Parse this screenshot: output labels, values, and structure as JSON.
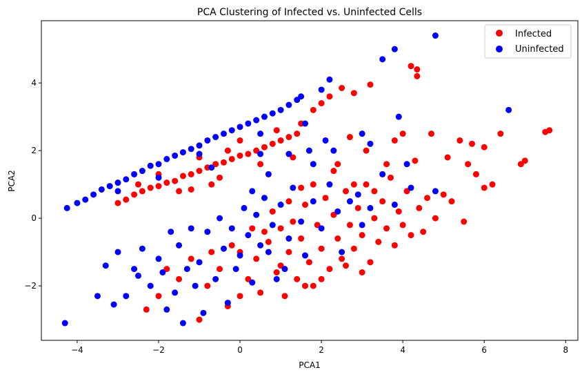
{
  "chart_data": {
    "type": "scatter",
    "title": "PCA Clustering of Infected vs. Uninfected Cells",
    "xlabel": "PCA1",
    "ylabel": "PCA2",
    "xlim": [
      -4.88,
      8.3
    ],
    "ylim": [
      -3.61,
      5.84
    ],
    "xticks": [
      -4,
      -2,
      0,
      2,
      4,
      6,
      8
    ],
    "yticks": [
      -2,
      0,
      2,
      4
    ],
    "xtick_labels": [
      "−4",
      "−2",
      "0",
      "2",
      "4",
      "6",
      "8"
    ],
    "ytick_labels": [
      "−2",
      "0",
      "2",
      "4"
    ],
    "grid": false,
    "legend_position": "top-right",
    "series": [
      {
        "name": "Infected",
        "color": "#ff0000",
        "points": [
          [
            -3,
            0.45
          ],
          [
            -2.8,
            0.55
          ],
          [
            -2.6,
            0.7
          ],
          [
            -2.4,
            0.8
          ],
          [
            -2.2,
            0.9
          ],
          [
            -2,
            0.95
          ],
          [
            -1.8,
            1.05
          ],
          [
            -1.6,
            1.1
          ],
          [
            -1.4,
            1.25
          ],
          [
            -1.2,
            1.3
          ],
          [
            -1,
            1.4
          ],
          [
            -0.8,
            1.5
          ],
          [
            -0.6,
            1.6
          ],
          [
            -0.4,
            1.65
          ],
          [
            -0.2,
            1.75
          ],
          [
            0,
            1.85
          ],
          [
            0.2,
            1.9
          ],
          [
            0.4,
            2.0
          ],
          [
            0.6,
            2.1
          ],
          [
            0.8,
            2.2
          ],
          [
            1,
            2.3
          ],
          [
            1.2,
            2.4
          ],
          [
            1.4,
            2.5
          ],
          [
            -2.5,
            1.0
          ],
          [
            -1.5,
            0.8
          ],
          [
            -1,
            1.8
          ],
          [
            -0.5,
            1.2
          ],
          [
            0,
            2.3
          ],
          [
            0.5,
            1.6
          ],
          [
            1.5,
            2.8
          ],
          [
            1.8,
            3.2
          ],
          [
            2,
            3.4
          ],
          [
            2.2,
            3.6
          ],
          [
            2.5,
            3.85
          ],
          [
            2.8,
            3.7
          ],
          [
            3.2,
            3.95
          ],
          [
            1.3,
            1.8
          ],
          [
            0.9,
            2.6
          ],
          [
            -0.3,
            2.0
          ],
          [
            -2.0,
            1.3
          ],
          [
            -1.2,
            0.85
          ],
          [
            -0.7,
            1.0
          ],
          [
            -2.3,
            -2.7
          ],
          [
            -2,
            -2.3
          ],
          [
            -1.8,
            -1.5
          ],
          [
            -1.5,
            -1.8
          ],
          [
            -1.2,
            -1.2
          ],
          [
            -1,
            -3
          ],
          [
            -0.8,
            -2
          ],
          [
            -0.5,
            -1.5
          ],
          [
            -0.3,
            -2.6
          ],
          [
            0,
            -2.3
          ],
          [
            0.2,
            -1.8
          ],
          [
            0.4,
            -1.2
          ],
          [
            0.5,
            -2.2
          ],
          [
            0.7,
            -0.7
          ],
          [
            0.9,
            -1.6
          ],
          [
            1.0,
            -0.3
          ],
          [
            1.1,
            -2.3
          ],
          [
            1.2,
            -1.0
          ],
          [
            1.3,
            -0.1
          ],
          [
            1.4,
            -1.8
          ],
          [
            1.5,
            -0.6
          ],
          [
            1.6,
            0.4
          ],
          [
            1.7,
            -1.3
          ],
          [
            1.8,
            -2.0
          ],
          [
            1.9,
            -0.2
          ],
          [
            2.0,
            -0.9
          ],
          [
            2.1,
            0.6
          ],
          [
            2.2,
            -1.5
          ],
          [
            2.3,
            0.1
          ],
          [
            2.4,
            -0.6
          ],
          [
            2.5,
            -1.2
          ],
          [
            2.6,
            0.8
          ],
          [
            2.7,
            -0.2
          ],
          [
            2.8,
            -0.9
          ],
          [
            2.9,
            0.3
          ],
          [
            3.0,
            -0.5
          ],
          [
            3.1,
            1.0
          ],
          [
            3.2,
            -1.3
          ],
          [
            3.3,
            0.0
          ],
          [
            3.4,
            -0.7
          ],
          [
            3.5,
            0.5
          ],
          [
            3.6,
            -0.3
          ],
          [
            3.7,
            1.2
          ],
          [
            3.8,
            -0.8
          ],
          [
            3.9,
            0.2
          ],
          [
            4.0,
            -0.2
          ],
          [
            4.1,
            0.8
          ],
          [
            4.2,
            -0.5
          ],
          [
            4.3,
            1.7
          ],
          [
            4.4,
            0.3
          ],
          [
            4.5,
            -0.4
          ],
          [
            4.6,
            0.6
          ],
          [
            4.8,
            0.0
          ],
          [
            5.0,
            0.7
          ],
          [
            5.2,
            0.5
          ],
          [
            5.5,
            -0.1
          ],
          [
            5.6,
            1.6
          ],
          [
            5.8,
            1.3
          ],
          [
            6.0,
            0.9
          ],
          [
            6.2,
            1.0
          ],
          [
            6.4,
            2.5
          ],
          [
            6.9,
            1.6
          ],
          [
            7.0,
            1.7
          ],
          [
            7.5,
            2.55
          ],
          [
            7.6,
            2.6
          ],
          [
            5.4,
            2.3
          ],
          [
            5.1,
            1.8
          ],
          [
            4.7,
            2.5
          ],
          [
            4.2,
            4.5
          ],
          [
            4.35,
            4.2
          ],
          [
            4.35,
            4.4
          ],
          [
            3.1,
            2.0
          ],
          [
            2.7,
            2.4
          ],
          [
            3.6,
            1.6
          ],
          [
            2.4,
            1.6
          ],
          [
            1.5,
            0.9
          ],
          [
            0.8,
            0.2
          ],
          [
            0.3,
            -0.3
          ],
          [
            -0.2,
            -0.8
          ],
          [
            -0.7,
            -1.0
          ],
          [
            1.0,
            -1.4
          ],
          [
            1.6,
            -2.0
          ],
          [
            2.0,
            -1.8
          ],
          [
            2.6,
            -1.4
          ],
          [
            3.0,
            -1.6
          ],
          [
            0.0,
            -1.0
          ],
          [
            0.6,
            -0.4
          ],
          [
            1.2,
            0.5
          ],
          [
            1.8,
            1.0
          ],
          [
            2.3,
            1.4
          ],
          [
            2.8,
            1.0
          ],
          [
            3.3,
            0.8
          ],
          [
            6.0,
            2.1
          ],
          [
            5.7,
            2.2
          ],
          [
            4.0,
            2.5
          ],
          [
            3.8,
            2.3
          ]
        ]
      },
      {
        "name": "Uninfected",
        "color": "#0000ff",
        "points": [
          [
            -4.25,
            0.3
          ],
          [
            -4.0,
            0.45
          ],
          [
            -3.8,
            0.55
          ],
          [
            -3.6,
            0.7
          ],
          [
            -3.4,
            0.85
          ],
          [
            -3.2,
            0.95
          ],
          [
            -3.0,
            1.05
          ],
          [
            -2.8,
            1.15
          ],
          [
            -2.6,
            1.3
          ],
          [
            -2.4,
            1.4
          ],
          [
            -2.2,
            1.55
          ],
          [
            -2.0,
            1.6
          ],
          [
            -1.8,
            1.75
          ],
          [
            -1.6,
            1.85
          ],
          [
            -1.4,
            1.95
          ],
          [
            -1.2,
            2.05
          ],
          [
            -1.0,
            2.15
          ],
          [
            -0.8,
            2.3
          ],
          [
            -0.6,
            2.4
          ],
          [
            -0.4,
            2.5
          ],
          [
            -0.2,
            2.6
          ],
          [
            0,
            2.7
          ],
          [
            0.2,
            2.8
          ],
          [
            0.4,
            2.9
          ],
          [
            0.6,
            3.0
          ],
          [
            0.8,
            3.1
          ],
          [
            1.0,
            3.2
          ],
          [
            1.2,
            3.35
          ],
          [
            1.4,
            3.5
          ],
          [
            1.5,
            3.6
          ],
          [
            -3.0,
            0.8
          ],
          [
            -2.0,
            1.2
          ],
          [
            -1.0,
            1.9
          ],
          [
            0.5,
            2.5
          ],
          [
            1.6,
            2.8
          ],
          [
            2.0,
            3.8
          ],
          [
            2.2,
            4.1
          ],
          [
            2.1,
            2.3
          ],
          [
            2.3,
            2.0
          ],
          [
            1.7,
            2.0
          ],
          [
            1.2,
            1.9
          ],
          [
            0.5,
            1.9
          ],
          [
            -0.7,
            1.5
          ],
          [
            0.7,
            1.3
          ],
          [
            1.8,
            1.6
          ],
          [
            3.2,
            2.2
          ],
          [
            3.0,
            2.5
          ],
          [
            3.5,
            4.7
          ],
          [
            3.8,
            5.0
          ],
          [
            4.8,
            5.4
          ],
          [
            6.6,
            3.2
          ],
          [
            3.9,
            3.0
          ],
          [
            -4.3,
            -3.1
          ],
          [
            -3.5,
            -2.3
          ],
          [
            -3.3,
            -1.4
          ],
          [
            -3.1,
            -2.55
          ],
          [
            -3.0,
            -1.0
          ],
          [
            -2.8,
            -2.3
          ],
          [
            -2.6,
            -1.5
          ],
          [
            -2.4,
            -0.9
          ],
          [
            -2.2,
            -2.0
          ],
          [
            -2.0,
            -1.2
          ],
          [
            -1.8,
            -2.7
          ],
          [
            -1.7,
            -0.4
          ],
          [
            -1.6,
            -2.2
          ],
          [
            -1.5,
            -0.8
          ],
          [
            -1.4,
            -3.1
          ],
          [
            -1.3,
            -1.5
          ],
          [
            -1.2,
            -0.3
          ],
          [
            -1.0,
            -1.3
          ],
          [
            -0.8,
            -0.4
          ],
          [
            -0.6,
            -1.8
          ],
          [
            -0.5,
            0.0
          ],
          [
            -0.4,
            -0.9
          ],
          [
            -0.3,
            -2.5
          ],
          [
            -0.2,
            -0.3
          ],
          [
            0.0,
            -1.1
          ],
          [
            0.1,
            0.3
          ],
          [
            0.2,
            -0.5
          ],
          [
            0.3,
            -1.9
          ],
          [
            0.4,
            0.1
          ],
          [
            0.5,
            -0.8
          ],
          [
            0.6,
            0.6
          ],
          [
            0.8,
            -0.2
          ],
          [
            0.9,
            -1.8
          ],
          [
            1.0,
            0.4
          ],
          [
            1.2,
            -0.6
          ],
          [
            1.3,
            0.9
          ],
          [
            1.5,
            -0.1
          ],
          [
            1.6,
            -1.1
          ],
          [
            1.8,
            0.5
          ],
          [
            2.0,
            -0.3
          ],
          [
            2.2,
            1.0
          ],
          [
            2.4,
            0.2
          ],
          [
            2.5,
            -1.0
          ],
          [
            2.7,
            0.5
          ],
          [
            3.0,
            -0.2
          ],
          [
            3.2,
            0.3
          ],
          [
            3.5,
            1.3
          ],
          [
            3.8,
            0.4
          ],
          [
            4.1,
            1.6
          ],
          [
            4.2,
            0.9
          ],
          [
            4.8,
            0.8
          ],
          [
            2.9,
            0.7
          ],
          [
            1.1,
            -1.5
          ],
          [
            0.7,
            -1.0
          ],
          [
            -1.1,
            -2.0
          ],
          [
            -2.5,
            -1.7
          ],
          [
            -0.9,
            -2.8
          ],
          [
            -1.9,
            -1.6
          ],
          [
            -0.1,
            -1.5
          ],
          [
            0.3,
            0.8
          ]
        ]
      }
    ]
  }
}
